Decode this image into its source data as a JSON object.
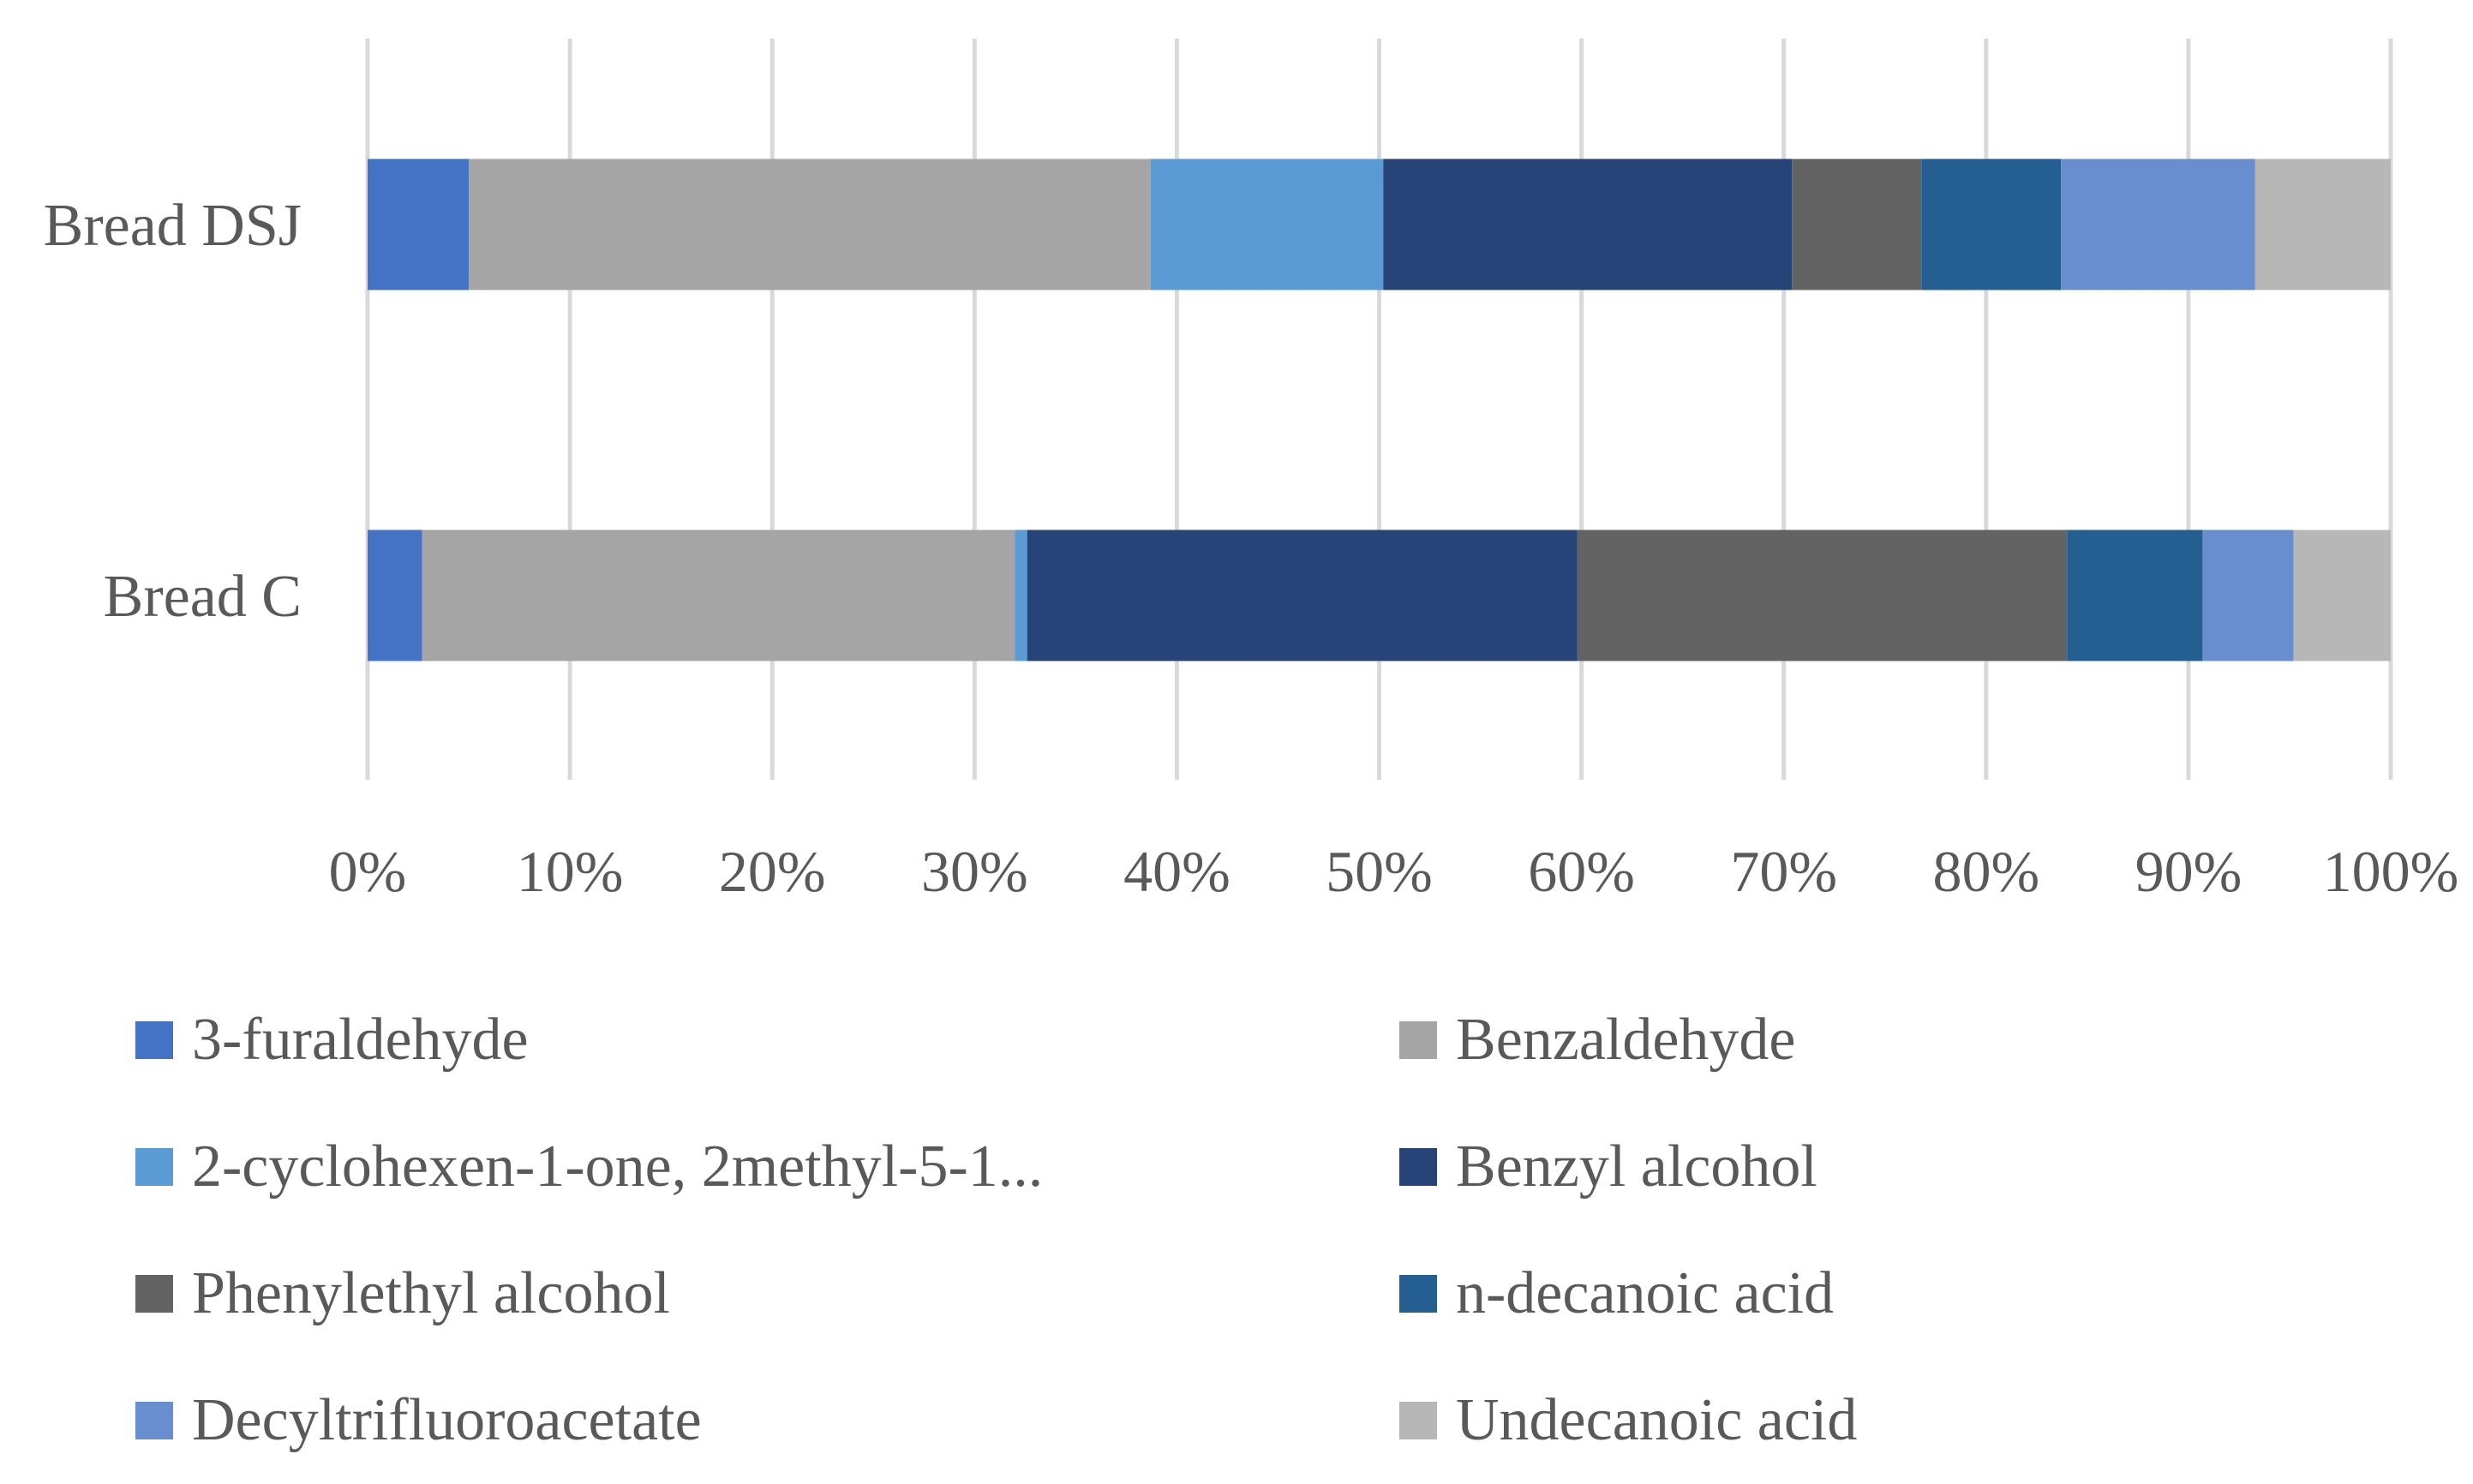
{
  "chart_data": {
    "type": "bar",
    "orientation": "horizontal",
    "stacked": true,
    "normalized": true,
    "title": "",
    "xlabel": "",
    "ylabel": "",
    "xlim": [
      0,
      100
    ],
    "grid": true,
    "legend_position": "bottom",
    "categories": [
      "Bread DSJ",
      "Bread C"
    ],
    "x_ticks": [
      "0%",
      "10%",
      "20%",
      "30%",
      "40%",
      "50%",
      "60%",
      "70%",
      "80%",
      "90%",
      "100%"
    ],
    "series": [
      {
        "name": "3-furaldehyde",
        "color": "#4472C4",
        "values": [
          5.0,
          2.7
        ]
      },
      {
        "name": "Benzaldehyde",
        "color": "#A5A5A5",
        "values": [
          33.7,
          29.3
        ]
      },
      {
        "name": "2-cyclohexen-1-one, 2methyl-5-1...",
        "color": "#5B9BD5",
        "values": [
          11.5,
          0.6
        ]
      },
      {
        "name": "Benzyl alcohol",
        "color": "#264478",
        "values": [
          20.2,
          27.2
        ]
      },
      {
        "name": "Phenylethyl alcohol",
        "color": "#636363",
        "values": [
          6.4,
          24.2
        ]
      },
      {
        "name": "n-decanoic acid",
        "color": "#255E91",
        "values": [
          6.9,
          6.7
        ]
      },
      {
        "name": "Decyltrifluoroacetate",
        "color": "#698ED0",
        "values": [
          9.6,
          4.5
        ]
      },
      {
        "name": "Undecanoic acid",
        "color": "#B7B7B7",
        "values": [
          6.7,
          4.8
        ]
      }
    ]
  }
}
